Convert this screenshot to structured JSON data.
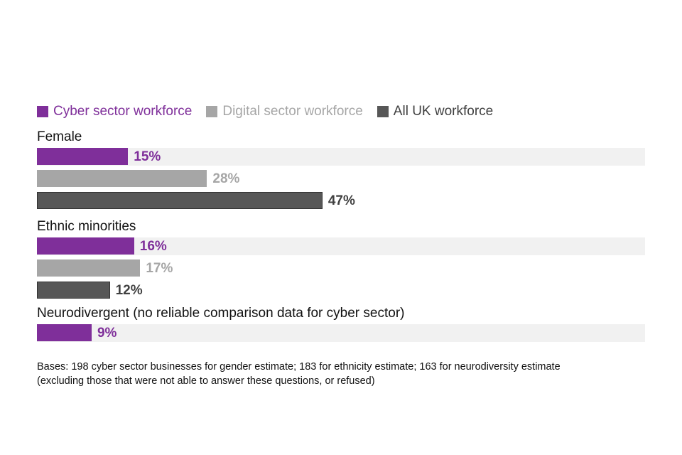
{
  "chart_data": {
    "type": "bar",
    "orientation": "horizontal",
    "unit": "%",
    "xlim": [
      0,
      100
    ],
    "legend_position": "top",
    "series": [
      {
        "name": "Cyber sector workforce",
        "color": "#7f2f9a",
        "text_color": "#7f2f9a"
      },
      {
        "name": "Digital sector workforce",
        "color": "#a6a6a6",
        "text_color": "#a6a6a6"
      },
      {
        "name": "All UK workforce",
        "color": "#575757",
        "text_color": "#404040"
      }
    ],
    "groups": [
      {
        "label": "Female",
        "values": [
          15,
          28,
          47
        ]
      },
      {
        "label": "Ethnic minorities",
        "values": [
          16,
          17,
          12
        ]
      },
      {
        "label": "Neurodivergent (no reliable comparison data for cyber sector)",
        "values": [
          9
        ]
      }
    ]
  },
  "footnote": {
    "line1": "Bases: 198 cyber sector businesses for gender estimate; 183 for ethnicity estimate; 163 for neurodiversity estimate",
    "line2": "(excluding those that were not able to answer these questions, or refused)"
  }
}
